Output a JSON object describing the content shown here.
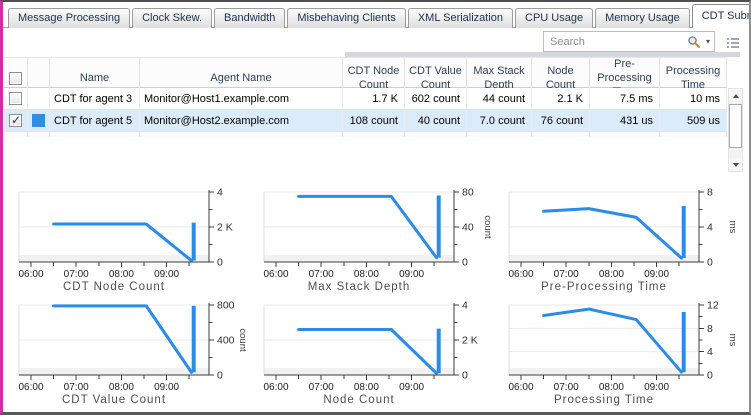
{
  "tabs": {
    "items": [
      {
        "label": "Message Processing",
        "active": false
      },
      {
        "label": "Clock Skew.",
        "active": false
      },
      {
        "label": "Bandwidth",
        "active": false
      },
      {
        "label": "Misbehaving Clients",
        "active": false
      },
      {
        "label": "XML Serialization",
        "active": false
      },
      {
        "label": "CPU Usage",
        "active": false
      },
      {
        "label": "Memory Usage",
        "active": false
      },
      {
        "label": "CDT Submission",
        "active": true
      }
    ]
  },
  "toolbar": {
    "search_placeholder": "Search",
    "icons": [
      "magnifier-icon",
      "dropdown-caret-icon",
      "column-chooser-icon"
    ]
  },
  "table": {
    "headers": {
      "name": "Name",
      "agent": "Agent Name",
      "cols": [
        "CDT Node Count",
        "CDT Value Count",
        "Max Stack Depth",
        "Node Count",
        "Pre-Processing Time",
        "Processing Time"
      ]
    },
    "rows": [
      {
        "checked": false,
        "color": null,
        "selected": false,
        "name": "CDT for agent 3",
        "agent": "Monitor@Host1.example.com",
        "values": [
          "1.7 K",
          "602 count",
          "44 count",
          "2.1 K",
          "7.5 ms",
          "10 ms"
        ]
      },
      {
        "checked": true,
        "color": "#2f8de4",
        "selected": true,
        "name": "CDT for agent 5",
        "agent": "Monitor@Host2.example.com",
        "values": [
          "108 count",
          "40 count",
          "7.0 count",
          "76 count",
          "431 us",
          "509 us"
        ]
      }
    ]
  },
  "colors": {
    "accent_blue": "#2a8ce8",
    "row_selected": "#dcebfa",
    "window_left_border": "#d02fa0"
  },
  "chart_x_axis": {
    "min": 6,
    "max": 9.85,
    "majors": [
      {
        "v": 6,
        "label": "06:00"
      },
      {
        "v": 7,
        "label": "07:00"
      },
      {
        "v": 8,
        "label": "08:00"
      },
      {
        "v": 9,
        "label": "09:00"
      }
    ],
    "minors": [
      6.5,
      7.5,
      8.5,
      9.5
    ]
  },
  "chart_data": [
    {
      "type": "line",
      "title": "CDT Node Count",
      "unit": null,
      "y_max": 4,
      "y_ticks": [
        {
          "v": 0,
          "label": "0"
        },
        {
          "v": 2,
          "label": "2 K"
        },
        {
          "v": 4,
          "label": "4"
        }
      ],
      "y_minors": [
        1,
        3
      ],
      "points": [
        [
          6.5,
          2.17
        ],
        [
          8.55,
          2.17
        ],
        [
          9.55,
          0.08
        ]
      ],
      "spike": {
        "x": 9.6,
        "low": 0.08,
        "high": 2.25
      }
    },
    {
      "type": "line",
      "title": "Max Stack Depth",
      "unit": "count",
      "y_max": 80,
      "y_ticks": [
        {
          "v": 0,
          "label": "0"
        },
        {
          "v": 40,
          "label": "40"
        },
        {
          "v": 80,
          "label": "80"
        }
      ],
      "y_minors": [
        20,
        60
      ],
      "points": [
        [
          6.5,
          75
        ],
        [
          8.55,
          75
        ],
        [
          9.55,
          5
        ]
      ],
      "spike": {
        "x": 9.6,
        "low": 5,
        "high": 76
      }
    },
    {
      "type": "line",
      "title": "Pre-Processing Time",
      "unit": "ms",
      "y_max": 8,
      "y_ticks": [
        {
          "v": 0,
          "label": "0"
        },
        {
          "v": 4,
          "label": "4"
        },
        {
          "v": 8,
          "label": "8"
        }
      ],
      "y_minors": [
        2,
        6
      ],
      "points": [
        [
          6.5,
          5.8
        ],
        [
          7.5,
          6.1
        ],
        [
          8.55,
          5.1
        ],
        [
          9.55,
          0.45
        ]
      ],
      "spike": {
        "x": 9.6,
        "low": 0.45,
        "high": 6.4
      }
    },
    {
      "type": "line",
      "title": "CDT Value Count",
      "unit": "count",
      "y_max": 800,
      "y_ticks": [
        {
          "v": 0,
          "label": "0"
        },
        {
          "v": 400,
          "label": "400"
        },
        {
          "v": 800,
          "label": "800"
        }
      ],
      "y_minors": [
        200,
        600
      ],
      "points": [
        [
          6.5,
          790
        ],
        [
          8.55,
          790
        ],
        [
          9.55,
          30
        ]
      ],
      "spike": {
        "x": 9.6,
        "low": 30,
        "high": 790
      }
    },
    {
      "type": "line",
      "title": "Node Count",
      "unit": null,
      "y_max": 4,
      "y_ticks": [
        {
          "v": 0,
          "label": "0"
        },
        {
          "v": 2,
          "label": "2 K"
        },
        {
          "v": 4,
          "label": "4"
        }
      ],
      "y_minors": [
        1,
        3
      ],
      "points": [
        [
          6.5,
          2.6
        ],
        [
          8.55,
          2.6
        ],
        [
          9.55,
          0.1
        ]
      ],
      "spike": {
        "x": 9.6,
        "low": 0.1,
        "high": 2.65
      }
    },
    {
      "type": "line",
      "title": "Processing Time",
      "unit": "ms",
      "y_max": 12,
      "y_ticks": [
        {
          "v": 0,
          "label": "0"
        },
        {
          "v": 4,
          "label": "4"
        },
        {
          "v": 8,
          "label": "8"
        },
        {
          "v": 12,
          "label": "12"
        }
      ],
      "y_minors": [
        2,
        6,
        10
      ],
      "points": [
        [
          6.5,
          10.2
        ],
        [
          7.5,
          11.3
        ],
        [
          8.55,
          9.5
        ],
        [
          9.55,
          0.5
        ]
      ],
      "spike": {
        "x": 9.6,
        "low": 0.5,
        "high": 10.8
      }
    }
  ]
}
